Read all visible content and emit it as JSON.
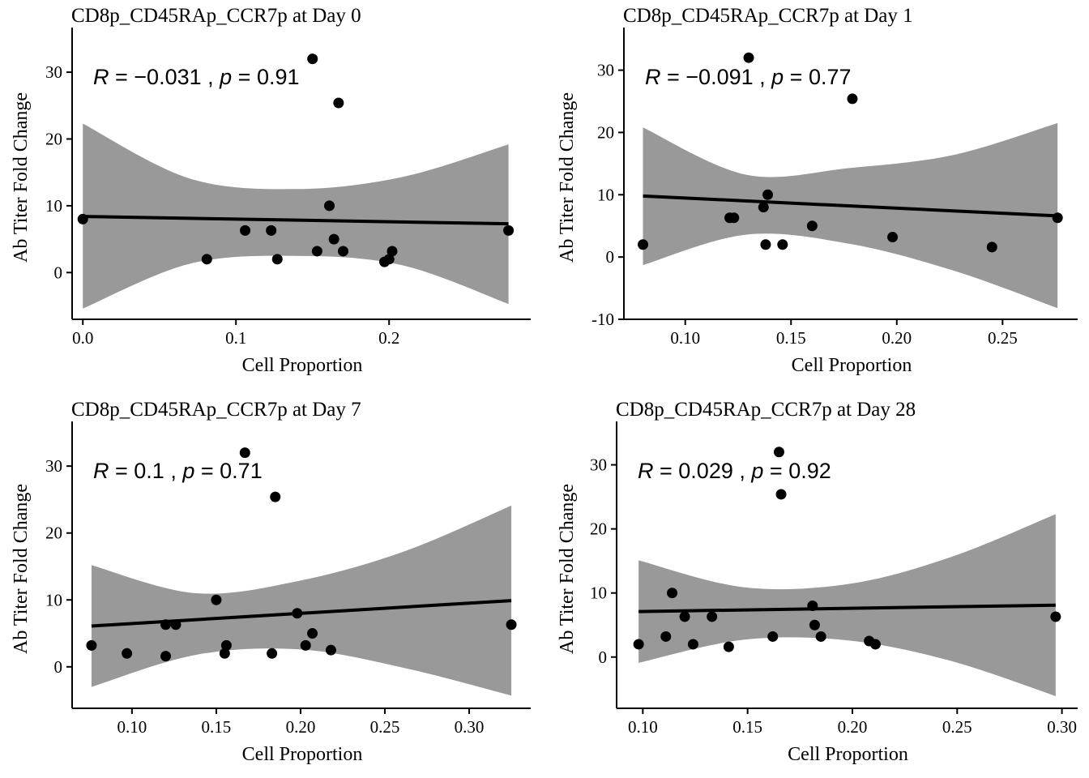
{
  "chart_data": [
    {
      "type": "scatter",
      "title": "CD8p_CD45RAp_CCR7p at Day 0",
      "xlabel": "Cell Proportion",
      "ylabel": "Ab Titer Fold Change",
      "stat": {
        "R": "−0.031",
        "p": "0.91"
      },
      "xlim": [
        -0.007,
        0.2925
      ],
      "ylim": [
        -7,
        34.5
      ],
      "xticks": [
        0.0,
        0.1,
        0.2
      ],
      "xtick_labels": [
        "0.0",
        "0.1",
        "0.2"
      ],
      "yticks": [
        0,
        10,
        20,
        30
      ],
      "ytick_labels": [
        "0",
        "10",
        "20",
        "30"
      ],
      "fit": {
        "x": [
          0.0,
          0.278
        ],
        "y": [
          8.4,
          7.3
        ]
      },
      "band": {
        "x": [
          0.0,
          0.0695,
          0.139,
          0.2085,
          0.278
        ],
        "upper": [
          22.3,
          14.1,
          12.5,
          14.3,
          19.2
        ],
        "lower": [
          -5.4,
          1.3,
          2.5,
          1.1,
          -4.7
        ]
      },
      "points": [
        {
          "x": 0.0,
          "y": 8.0
        },
        {
          "x": 0.081,
          "y": 2.0
        },
        {
          "x": 0.106,
          "y": 6.3
        },
        {
          "x": 0.123,
          "y": 6.3
        },
        {
          "x": 0.127,
          "y": 2.0
        },
        {
          "x": 0.15,
          "y": 32.0
        },
        {
          "x": 0.153,
          "y": 3.2
        },
        {
          "x": 0.161,
          "y": 10.0
        },
        {
          "x": 0.164,
          "y": 5.0
        },
        {
          "x": 0.167,
          "y": 25.4
        },
        {
          "x": 0.17,
          "y": 3.2
        },
        {
          "x": 0.197,
          "y": 1.6
        },
        {
          "x": 0.2,
          "y": 2.0
        },
        {
          "x": 0.202,
          "y": 3.2
        },
        {
          "x": 0.278,
          "y": 6.3
        }
      ]
    },
    {
      "type": "scatter",
      "title": "CD8p_CD45RAp_CCR7p at Day 1",
      "xlabel": "Cell Proportion",
      "ylabel": "Ab Titer Fold Change",
      "stat": {
        "R": "−0.091",
        "p": "0.77"
      },
      "xlim": [
        0.071,
        0.2855
      ],
      "ylim": [
        -10,
        34.5
      ],
      "xticks": [
        0.1,
        0.15,
        0.2,
        0.25
      ],
      "xtick_labels": [
        "0.10",
        "0.15",
        "0.20",
        "0.25"
      ],
      "yticks": [
        -10,
        0,
        10,
        20,
        30
      ],
      "ytick_labels": [
        "-10",
        "0",
        "10",
        "20",
        "30"
      ],
      "fit": {
        "x": [
          0.08,
          0.276
        ],
        "y": [
          9.8,
          6.6
        ]
      },
      "band": {
        "x": [
          0.08,
          0.129,
          0.178,
          0.227,
          0.276
        ],
        "upper": [
          20.8,
          13.2,
          14.3,
          16.4,
          21.5
        ],
        "lower": [
          -1.3,
          3.6,
          2.1,
          -2.2,
          -8.2
        ]
      },
      "points": [
        {
          "x": 0.08,
          "y": 2.0
        },
        {
          "x": 0.121,
          "y": 6.3
        },
        {
          "x": 0.123,
          "y": 6.3
        },
        {
          "x": 0.13,
          "y": 32.0
        },
        {
          "x": 0.137,
          "y": 8.0
        },
        {
          "x": 0.138,
          "y": 2.0
        },
        {
          "x": 0.139,
          "y": 10.0
        },
        {
          "x": 0.146,
          "y": 2.0
        },
        {
          "x": 0.16,
          "y": 5.0
        },
        {
          "x": 0.179,
          "y": 25.4
        },
        {
          "x": 0.198,
          "y": 3.2
        },
        {
          "x": 0.245,
          "y": 1.6
        },
        {
          "x": 0.276,
          "y": 6.3
        }
      ]
    },
    {
      "type": "scatter",
      "title": "CD8p_CD45RAp_CCR7p at Day 7",
      "xlabel": "Cell Proportion",
      "ylabel": "Ab Titer Fold Change",
      "stat": {
        "R": "0.1",
        "p": "0.71"
      },
      "xlim": [
        0.0645,
        0.3365
      ],
      "ylim": [
        -6.2,
        34.5
      ],
      "xticks": [
        0.1,
        0.15,
        0.2,
        0.25,
        0.3
      ],
      "xtick_labels": [
        "0.10",
        "0.15",
        "0.20",
        "0.25",
        "0.30"
      ],
      "yticks": [
        0,
        10,
        20,
        30
      ],
      "ytick_labels": [
        "0",
        "10",
        "20",
        "30"
      ],
      "fit": {
        "x": [
          0.076,
          0.325
        ],
        "y": [
          6.1,
          9.9
        ]
      },
      "band": {
        "x": [
          0.076,
          0.138,
          0.2,
          0.262,
          0.325
        ],
        "upper": [
          15.2,
          11.0,
          12.9,
          17.3,
          24.1
        ],
        "lower": [
          -3.0,
          1.8,
          2.6,
          -0.2,
          -4.3
        ]
      },
      "points": [
        {
          "x": 0.076,
          "y": 3.2
        },
        {
          "x": 0.097,
          "y": 2.0
        },
        {
          "x": 0.12,
          "y": 1.6
        },
        {
          "x": 0.12,
          "y": 6.3
        },
        {
          "x": 0.126,
          "y": 6.3
        },
        {
          "x": 0.15,
          "y": 10.0
        },
        {
          "x": 0.155,
          "y": 2.0
        },
        {
          "x": 0.156,
          "y": 3.2
        },
        {
          "x": 0.167,
          "y": 32.0
        },
        {
          "x": 0.183,
          "y": 2.0
        },
        {
          "x": 0.185,
          "y": 25.4
        },
        {
          "x": 0.198,
          "y": 8.0
        },
        {
          "x": 0.203,
          "y": 3.2
        },
        {
          "x": 0.207,
          "y": 5.0
        },
        {
          "x": 0.218,
          "y": 2.5
        },
        {
          "x": 0.325,
          "y": 6.3
        }
      ]
    },
    {
      "type": "scatter",
      "title": "CD8p_CD45RAp_CCR7p at Day 28",
      "xlabel": "Cell Proportion",
      "ylabel": "Ab Titer Fold Change",
      "stat": {
        "R": "0.029",
        "p": "0.92"
      },
      "xlim": [
        0.0875,
        0.3075
      ],
      "ylim": [
        -8,
        34.5
      ],
      "xticks": [
        0.1,
        0.15,
        0.2,
        0.25,
        0.3
      ],
      "xtick_labels": [
        "0.10",
        "0.15",
        "0.20",
        "0.25",
        "0.30"
      ],
      "yticks": [
        0,
        10,
        20,
        30
      ],
      "ytick_labels": [
        "0",
        "10",
        "20",
        "30"
      ],
      "fit": {
        "x": [
          0.098,
          0.297
        ],
        "y": [
          7.1,
          8.1
        ]
      },
      "band": {
        "x": [
          0.098,
          0.148,
          0.198,
          0.247,
          0.297
        ],
        "upper": [
          15.1,
          10.9,
          11.4,
          15.6,
          22.3
        ],
        "lower": [
          -0.9,
          2.7,
          2.6,
          -0.6,
          -6.1
        ]
      },
      "points": [
        {
          "x": 0.098,
          "y": 2.0
        },
        {
          "x": 0.111,
          "y": 3.2
        },
        {
          "x": 0.114,
          "y": 10.0
        },
        {
          "x": 0.12,
          "y": 6.3
        },
        {
          "x": 0.124,
          "y": 2.0
        },
        {
          "x": 0.133,
          "y": 6.3
        },
        {
          "x": 0.141,
          "y": 1.6
        },
        {
          "x": 0.162,
          "y": 3.2
        },
        {
          "x": 0.165,
          "y": 32.0
        },
        {
          "x": 0.166,
          "y": 25.4
        },
        {
          "x": 0.181,
          "y": 8.0
        },
        {
          "x": 0.182,
          "y": 5.0
        },
        {
          "x": 0.185,
          "y": 3.2
        },
        {
          "x": 0.208,
          "y": 2.5
        },
        {
          "x": 0.211,
          "y": 2.0
        },
        {
          "x": 0.297,
          "y": 6.3
        }
      ]
    }
  ]
}
